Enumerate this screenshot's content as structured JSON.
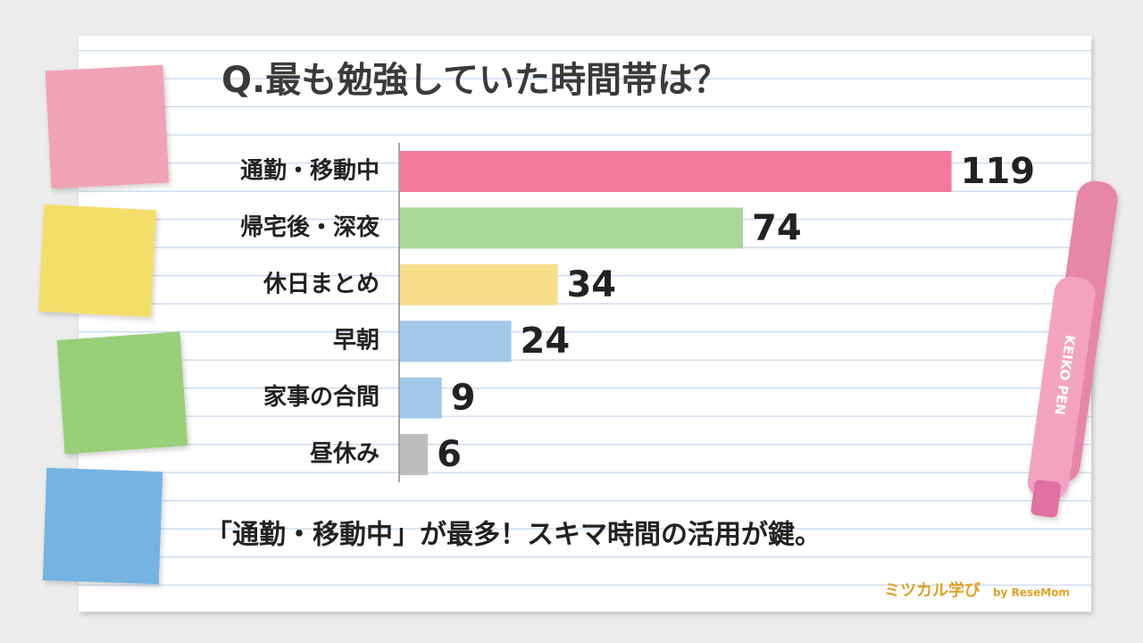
{
  "chart_data": {
    "type": "bar",
    "orientation": "horizontal",
    "title": "Q.最も勉強していた時間帯は？",
    "categories": [
      "通勤・移動中",
      "帰宅後・深夜",
      "休日まとめ",
      "早朝",
      "家事の合間",
      "昼休み"
    ],
    "values": [
      119,
      74,
      34,
      24,
      9,
      6
    ],
    "colors": [
      "#f5799f",
      "#a8d89a",
      "#f7dc8a",
      "#a3c8ea",
      "#a3c8ea",
      "#bdbdbd"
    ],
    "caption": "「通勤・移動中」が最多！スキマ時間の活用が鍵。",
    "logo": "ミツカル学び",
    "logo_by": "by ReseMom",
    "pen_label": "KEIKO PEN"
  }
}
